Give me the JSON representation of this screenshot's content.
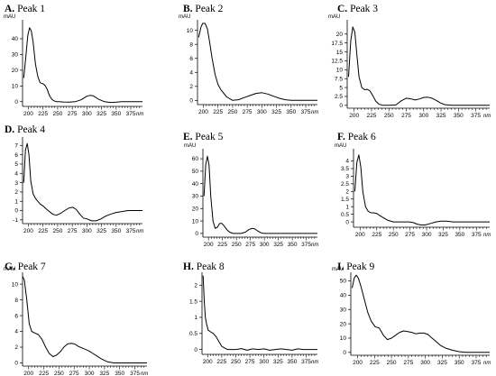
{
  "colors": {
    "line": "#000000",
    "axis": "#000000",
    "background": "#ffffff"
  },
  "chart_data": [
    {
      "type": "line",
      "label": "A.",
      "title": "Peak 1",
      "yunit": "mAU",
      "xunit": "nm",
      "xlim": [
        190,
        395
      ],
      "ylim": [
        -3,
        52
      ],
      "yticks": [
        "0",
        "10",
        "20",
        "30",
        "40"
      ],
      "ytick_values": [
        0,
        10,
        20,
        30,
        40
      ],
      "xticks": [
        "200",
        "225",
        "250",
        "275",
        "300",
        "325",
        "350",
        "375"
      ],
      "x": [
        192,
        196,
        199,
        202,
        205,
        208,
        212,
        216,
        220,
        224,
        228,
        232,
        236,
        240,
        244,
        248,
        252,
        260,
        270,
        280,
        290,
        300,
        305,
        310,
        315,
        320,
        330,
        340,
        350,
        360,
        370,
        380,
        390,
        395
      ],
      "y": [
        15,
        30,
        42,
        47,
        45,
        38,
        24,
        16,
        12,
        11.5,
        10.5,
        8,
        4,
        1.5,
        0.5,
        0,
        0,
        -0.2,
        -0.3,
        0,
        1.2,
        3.5,
        4,
        3.8,
        2.8,
        1.5,
        0,
        -0.5,
        -0.3,
        0,
        0,
        0,
        0,
        0
      ]
    },
    {
      "type": "line",
      "label": "B.",
      "title": "Peak 2",
      "yunit": "mAU",
      "xunit": "nm",
      "xlim": [
        190,
        395
      ],
      "ylim": [
        -0.6,
        11.5
      ],
      "yticks": [
        "0",
        "2",
        "4",
        "6",
        "8",
        "10"
      ],
      "ytick_values": [
        0,
        2,
        4,
        6,
        8,
        10
      ],
      "xticks": [
        "200",
        "225",
        "250",
        "275",
        "300",
        "325",
        "350",
        "375"
      ],
      "x": [
        192,
        196,
        199,
        203,
        207,
        211,
        215,
        220,
        225,
        230,
        240,
        250,
        260,
        270,
        280,
        290,
        300,
        310,
        320,
        330,
        340,
        350,
        360,
        370,
        380,
        390,
        395
      ],
      "y": [
        9,
        10.5,
        11,
        11,
        10.2,
        8.2,
        6,
        3.7,
        2.3,
        1.5,
        0.5,
        0,
        0.1,
        0.4,
        0.7,
        1,
        1.1,
        0.9,
        0.6,
        0.3,
        0.1,
        0,
        0,
        0,
        0,
        0,
        0
      ]
    },
    {
      "type": "line",
      "label": "C.",
      "title": "Peak 3",
      "yunit": "mAU",
      "xunit": "nm",
      "xlim": [
        190,
        395
      ],
      "ylim": [
        -0.8,
        24
      ],
      "yticks": [
        "0",
        "2.5",
        "5",
        "7.5",
        "10",
        "12.5",
        "15",
        "17.5",
        "20"
      ],
      "ytick_values": [
        0,
        2.5,
        5,
        7.5,
        10,
        12.5,
        15,
        17.5,
        20
      ],
      "xticks": [
        "200",
        "225",
        "250",
        "275",
        "300",
        "325",
        "350",
        "375"
      ],
      "x": [
        192,
        195,
        198,
        201,
        204,
        207,
        211,
        215,
        219,
        223,
        227,
        231,
        236,
        242,
        250,
        260,
        268,
        275,
        282,
        288,
        294,
        300,
        306,
        312,
        318,
        324,
        330,
        340,
        350,
        360,
        370,
        380,
        390,
        395
      ],
      "y": [
        8,
        18,
        22,
        20.5,
        14,
        8,
        5,
        4.4,
        4.5,
        4,
        2.7,
        1.2,
        0.3,
        0,
        0,
        0.1,
        1.3,
        2,
        1.8,
        1.5,
        1.8,
        2.2,
        2.3,
        2,
        1.4,
        0.7,
        0.2,
        0,
        0,
        0,
        0,
        0,
        0,
        0
      ]
    },
    {
      "type": "line",
      "label": "D.",
      "title": "Peak 4",
      "yunit": "",
      "xunit": "nm",
      "xlim": [
        190,
        395
      ],
      "ylim": [
        -1.4,
        7.9
      ],
      "yticks": [
        "-1",
        "0",
        "1",
        "2",
        "3",
        "4",
        "5",
        "6",
        "7"
      ],
      "ytick_values": [
        -1,
        0,
        1,
        2,
        3,
        4,
        5,
        6,
        7
      ],
      "xticks": [
        "200",
        "225",
        "250",
        "275",
        "300",
        "325",
        "350",
        "375"
      ],
      "x": [
        192,
        195,
        198,
        201,
        204,
        208,
        212,
        216,
        220,
        225,
        230,
        236,
        242,
        248,
        255,
        262,
        270,
        276,
        282,
        288,
        294,
        300,
        308,
        316,
        324,
        332,
        340,
        350,
        360,
        370,
        380,
        390,
        395
      ],
      "y": [
        3,
        6.5,
        7.2,
        6,
        3.2,
        1.8,
        1.3,
        1,
        0.7,
        0.5,
        0.2,
        -0.1,
        -0.4,
        -0.5,
        -0.3,
        0,
        0.3,
        0.35,
        0.1,
        -0.4,
        -0.8,
        -0.9,
        -1.1,
        -1.1,
        -0.9,
        -0.6,
        -0.4,
        -0.2,
        -0.1,
        0,
        0,
        0,
        0
      ]
    },
    {
      "type": "line",
      "label": "E.",
      "title": "Peak 5",
      "yunit": "mAU",
      "xunit": "nm",
      "xlim": [
        190,
        395
      ],
      "ylim": [
        -3,
        68
      ],
      "yticks": [
        "0",
        "10",
        "20",
        "30",
        "40",
        "50",
        "60"
      ],
      "ytick_values": [
        0,
        10,
        20,
        30,
        40,
        50,
        60
      ],
      "xticks": [
        "200",
        "225",
        "250",
        "275",
        "300",
        "325",
        "350",
        "375"
      ],
      "x": [
        192,
        195,
        198,
        201,
        204,
        208,
        212,
        216,
        220,
        224,
        228,
        233,
        238,
        244,
        250,
        258,
        266,
        272,
        278,
        283,
        288,
        294,
        300,
        310,
        320,
        330,
        340,
        350,
        360,
        370,
        380,
        390,
        395
      ],
      "y": [
        30,
        55,
        62,
        55,
        30,
        10,
        4,
        5,
        8,
        8,
        6,
        3,
        1,
        0,
        0,
        0,
        1,
        3,
        4,
        3.6,
        2,
        0.5,
        0,
        0,
        0,
        0,
        0,
        0,
        0,
        0,
        0,
        0,
        0
      ]
    },
    {
      "type": "line",
      "label": "F.",
      "title": "Peak 6",
      "yunit": "mAU",
      "xunit": "nm",
      "xlim": [
        190,
        395
      ],
      "ylim": [
        -0.35,
        4.8
      ],
      "yticks": [
        "0",
        "0.5",
        "1",
        "1.5",
        "2",
        "2.5",
        "3",
        "3.5",
        "4"
      ],
      "ytick_values": [
        0,
        0.5,
        1,
        1.5,
        2,
        2.5,
        3,
        3.5,
        4
      ],
      "xticks": [
        "200",
        "225",
        "250",
        "275",
        "300",
        "325",
        "350",
        "375"
      ],
      "x": [
        192,
        195,
        198,
        201,
        204,
        208,
        212,
        216,
        220,
        225,
        230,
        236,
        242,
        250,
        258,
        266,
        274,
        280,
        286,
        292,
        298,
        306,
        314,
        322,
        330,
        340,
        350,
        360,
        370,
        380,
        390,
        395
      ],
      "y": [
        2,
        3.9,
        4.4,
        3.6,
        2,
        1,
        0.7,
        0.6,
        0.6,
        0.55,
        0.4,
        0.25,
        0.1,
        0,
        0,
        0,
        0,
        -0.05,
        -0.15,
        -0.2,
        -0.2,
        -0.1,
        0,
        0.05,
        0.05,
        0,
        0,
        0,
        0,
        0,
        0,
        0
      ]
    },
    {
      "type": "line",
      "label": "G.",
      "title": "Peak 7",
      "yunit": "mAU",
      "xunit": "nm",
      "xlim": [
        190,
        395
      ],
      "ylim": [
        -0.4,
        11.5
      ],
      "yticks": [
        "0",
        "2",
        "4",
        "6",
        "8",
        "10"
      ],
      "ytick_values": [
        0,
        2,
        4,
        6,
        8,
        10
      ],
      "xticks": [
        "200",
        "225",
        "250",
        "275",
        "300",
        "325",
        "350",
        "375"
      ],
      "x": [
        190,
        193,
        197,
        201,
        205,
        210,
        216,
        222,
        228,
        234,
        240,
        246,
        252,
        258,
        264,
        270,
        276,
        282,
        288,
        294,
        300,
        306,
        312,
        318,
        324,
        330,
        340,
        350,
        360,
        370,
        380,
        390,
        395
      ],
      "y": [
        11,
        10.5,
        8,
        5,
        4,
        3.8,
        3.6,
        3,
        2,
        1.2,
        0.8,
        1,
        1.4,
        2,
        2.4,
        2.5,
        2.4,
        2.1,
        1.9,
        1.7,
        1.5,
        1.2,
        0.9,
        0.6,
        0.35,
        0.15,
        0,
        0,
        0,
        0,
        0,
        0,
        0
      ]
    },
    {
      "type": "line",
      "label": "H.",
      "title": "Peak 8",
      "yunit": "",
      "xunit": "nm",
      "xlim": [
        190,
        395
      ],
      "ylim": [
        -0.15,
        2.4
      ],
      "yticks": [
        "0",
        "0.5",
        "1",
        "1.5",
        "2"
      ],
      "ytick_values": [
        0,
        0.5,
        1,
        1.5,
        2
      ],
      "xticks": [
        "200",
        "225",
        "250",
        "275",
        "300",
        "325",
        "350",
        "375"
      ],
      "x": [
        192,
        194,
        196,
        198,
        201,
        205,
        210,
        215,
        220,
        225,
        230,
        235,
        240,
        250,
        260,
        270,
        280,
        290,
        300,
        310,
        320,
        330,
        340,
        350,
        360,
        370,
        380,
        390,
        395
      ],
      "y": [
        2.3,
        1.5,
        1,
        0.8,
        0.6,
        0.55,
        0.5,
        0.4,
        0.25,
        0.1,
        0.05,
        0,
        0,
        0,
        0.03,
        -0.02,
        0.02,
        0,
        0.02,
        -0.02,
        0,
        0.02,
        0,
        -0.02,
        0.02,
        0,
        0,
        0,
        0
      ]
    },
    {
      "type": "line",
      "label": "I.",
      "title": "Peak 9",
      "yunit": "mAU",
      "xunit": "nm",
      "xlim": [
        190,
        395
      ],
      "ylim": [
        -2,
        56
      ],
      "yticks": [
        "0",
        "10",
        "20",
        "30",
        "40",
        "50"
      ],
      "ytick_values": [
        0,
        10,
        20,
        30,
        40,
        50
      ],
      "xticks": [
        "200",
        "225",
        "250",
        "275",
        "300",
        "325",
        "350",
        "375"
      ],
      "x": [
        192,
        195,
        198,
        201,
        205,
        210,
        215,
        220,
        226,
        232,
        238,
        244,
        250,
        256,
        262,
        268,
        274,
        280,
        286,
        292,
        298,
        304,
        310,
        316,
        322,
        330,
        340,
        350,
        360,
        370,
        380,
        390,
        395
      ],
      "y": [
        45,
        52,
        54,
        52,
        46,
        37,
        28,
        22,
        18,
        17,
        12,
        9,
        10,
        12,
        14,
        15,
        14.5,
        14,
        13,
        13.5,
        13.5,
        12.5,
        10,
        7.5,
        5,
        3,
        1.5,
        0.5,
        0,
        0,
        0,
        0,
        0
      ]
    }
  ]
}
